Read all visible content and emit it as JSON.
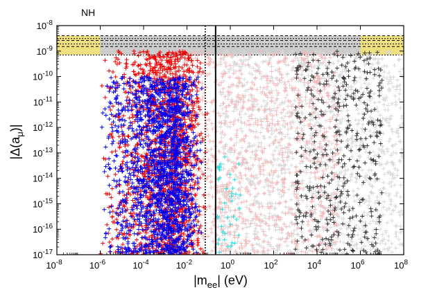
{
  "chart_data": {
    "type": "scatter",
    "title": "NH",
    "xlabel_main": "|m",
    "xlabel_sub": "ee",
    "xlabel_rest": "|   (eV)",
    "ylabel_main": "|Δ(a",
    "ylabel_sub": "μ",
    "ylabel_rest": ")|",
    "x_scale": "log",
    "y_scale": "log",
    "xlim": [
      1e-08,
      100000000.0
    ],
    "ylim": [
      1e-17,
      1e-08
    ],
    "x_ticks": [
      {
        "value": -8,
        "base": "10",
        "exp": "-8"
      },
      {
        "value": -6,
        "base": "10",
        "exp": "-6"
      },
      {
        "value": -4,
        "base": "10",
        "exp": "-4"
      },
      {
        "value": -2,
        "base": "10",
        "exp": "-2"
      },
      {
        "value": 0,
        "base": "10",
        "exp": "0"
      },
      {
        "value": 2,
        "base": "10",
        "exp": "2"
      },
      {
        "value": 4,
        "base": "10",
        "exp": "4"
      },
      {
        "value": 6,
        "base": "10",
        "exp": "6"
      },
      {
        "value": 8,
        "base": "10",
        "exp": "8"
      }
    ],
    "y_ticks": [
      {
        "value": -17,
        "base": "10",
        "exp": "-17"
      },
      {
        "value": -16,
        "base": "10",
        "exp": "-16"
      },
      {
        "value": -15,
        "base": "10",
        "exp": "-15"
      },
      {
        "value": -14,
        "base": "10",
        "exp": "-14"
      },
      {
        "value": -13,
        "base": "10",
        "exp": "-13"
      },
      {
        "value": -12,
        "base": "10",
        "exp": "-12"
      },
      {
        "value": -11,
        "base": "10",
        "exp": "-11"
      },
      {
        "value": -10,
        "base": "10",
        "exp": "-10"
      },
      {
        "value": -9,
        "base": "10",
        "exp": "-9"
      },
      {
        "value": -8,
        "base": "10",
        "exp": "-8"
      }
    ],
    "band": {
      "y_range": [
        7e-10,
        4e-09
      ],
      "color": "#f0e080",
      "grey_color": "#cccccc",
      "dash_lines_y": [
        4e-09,
        3.1e-09,
        2.6e-09,
        1.9e-09,
        1.5e-09,
        7e-10
      ]
    },
    "vertical_lines": [
      {
        "x": 0.07,
        "style": "dotted"
      },
      {
        "x": 0.21,
        "style": "solid"
      }
    ],
    "series": [
      {
        "color": "#d8d8d8",
        "x_range": [
          0.3,
          100000000.0
        ],
        "y_range": [
          1e-17,
          1e-09
        ],
        "count": 1400
      },
      {
        "color": "#f5b8b8",
        "x_range": [
          0.0001,
          100000.0
        ],
        "y_range": [
          1e-17,
          1e-09
        ],
        "count": 1200
      },
      {
        "color": "#333333",
        "x_range": [
          1000.0,
          10000000.0
        ],
        "y_range": [
          1e-17,
          1e-09
        ],
        "count": 420
      },
      {
        "color": "#22e0e0",
        "x_range": [
          0.25,
          3
        ],
        "y_range": [
          1e-17,
          1e-13
        ],
        "count": 40
      },
      {
        "color": "#ee0000",
        "x_range": [
          1e-06,
          0.1
        ],
        "y_range": [
          1e-17,
          1e-09
        ],
        "count": 1500
      },
      {
        "color": "#0000ee",
        "x_range": [
          1e-06,
          0.05
        ],
        "y_range": [
          1e-17,
          1e-10
        ],
        "count": 1700
      }
    ]
  }
}
